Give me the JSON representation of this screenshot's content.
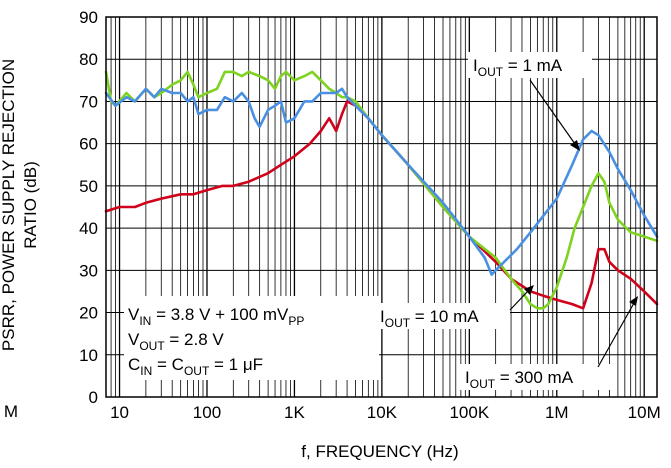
{
  "chart_data": {
    "type": "line",
    "title": "",
    "xlabel": "f, FREQUENCY (Hz)",
    "ylabel_line1": "PSRR, POWER SUPPLY REJECTION",
    "ylabel_line2": "RATIO (dB)",
    "x_scale": "log",
    "xlim": [
      7,
      14000000
    ],
    "ylim": [
      0,
      90
    ],
    "x_ticks": [
      10,
      100,
      1000,
      10000,
      100000,
      1000000,
      10000000
    ],
    "x_tick_labels": [
      "10",
      "100",
      "1K",
      "10K",
      "100K",
      "1M",
      "10M"
    ],
    "x_stray_label": "M",
    "y_ticks": [
      0,
      10,
      20,
      30,
      40,
      50,
      60,
      70,
      80,
      90
    ],
    "y_tick_labels": [
      "0",
      "10",
      "20",
      "30",
      "40",
      "50",
      "60",
      "70",
      "80",
      "90"
    ],
    "grid": true,
    "conditions": [
      {
        "pre": "V",
        "sub": "IN",
        "post": " = 3.8 V + 100 mV",
        "sub2": "PP"
      },
      {
        "pre": "V",
        "sub": "OUT",
        "post": " = 2.8 V"
      },
      {
        "pre": "C",
        "sub": "IN",
        "mid": " = C",
        "sub3": "OUT",
        "post": " = 1 μF"
      }
    ],
    "annotations": [
      {
        "pre": "I",
        "sub": "OUT",
        "post": " = 1 mA"
      },
      {
        "pre": "I",
        "sub": "OUT",
        "post": " = 10 mA"
      },
      {
        "pre": "I",
        "sub": "OUT",
        "post": " = 300 mA"
      }
    ],
    "series": [
      {
        "color": "#4a90e2",
        "x": [
          7,
          9,
          12,
          15,
          20,
          25,
          30,
          40,
          50,
          60,
          70,
          80,
          100,
          130,
          160,
          200,
          250,
          300,
          350,
          400,
          500,
          600,
          700,
          800,
          1000,
          1300,
          1600,
          2000,
          2500,
          3000,
          3500,
          4000,
          5000,
          7000,
          10000,
          20000,
          50000,
          100000,
          150000,
          180000,
          200000,
          250000,
          350000,
          500000,
          1000000,
          1500000,
          2000000,
          2500000,
          3000000,
          4000000,
          5000000,
          7000000,
          10000000,
          14000000
        ],
        "y": [
          72,
          69,
          71,
          70,
          73,
          71,
          73,
          72,
          72,
          70,
          71,
          67,
          68,
          68,
          71,
          70,
          72,
          70,
          66,
          64,
          68,
          69,
          70,
          65,
          66,
          70,
          70,
          72,
          72,
          72,
          73,
          71,
          69,
          66,
          62,
          55,
          46,
          38,
          33,
          29,
          30,
          32,
          35,
          39,
          47,
          55,
          61,
          63,
          62,
          58,
          54,
          49,
          43,
          38
        ]
      },
      {
        "color": "#7ed321",
        "x": [
          7,
          8,
          9,
          12,
          15,
          20,
          25,
          30,
          40,
          50,
          60,
          70,
          80,
          100,
          130,
          160,
          200,
          250,
          300,
          400,
          500,
          600,
          700,
          800,
          1000,
          1300,
          1600,
          2000,
          2500,
          3000,
          3500,
          4000,
          5000,
          7000,
          10000,
          20000,
          50000,
          100000,
          200000,
          300000,
          400000,
          500000,
          600000,
          700000,
          800000,
          1000000,
          1300000,
          1600000,
          2000000,
          2500000,
          3000000,
          3500000,
          4000000,
          5000000,
          7000000,
          10000000,
          14000000
        ],
        "y": [
          77,
          70,
          69,
          72,
          70,
          73,
          71,
          72,
          74,
          75,
          77,
          74,
          71,
          72,
          73,
          77,
          77,
          76,
          77,
          76,
          75,
          73,
          76,
          77,
          75,
          76,
          77,
          75,
          73,
          72,
          71,
          71,
          70,
          66,
          62,
          55,
          45,
          38,
          33,
          28,
          25,
          22,
          21,
          21,
          22,
          26,
          33,
          40,
          45,
          50,
          53,
          51,
          46,
          42,
          39,
          38,
          37
        ]
      },
      {
        "color": "#d0021b",
        "x": [
          7,
          10,
          15,
          20,
          30,
          50,
          70,
          100,
          150,
          200,
          300,
          500,
          700,
          1000,
          1500,
          2000,
          2500,
          3000,
          3500,
          4000,
          5000,
          7000,
          10000,
          20000,
          50000,
          100000,
          200000,
          300000,
          500000,
          700000,
          1000000,
          1500000,
          2000000,
          2500000,
          3000000,
          3500000,
          4000000,
          5000000,
          7000000,
          10000000,
          14000000
        ],
        "y": [
          44,
          45,
          45,
          46,
          47,
          48,
          48,
          49,
          50,
          50,
          51,
          53,
          55,
          57,
          60,
          63,
          66,
          63,
          67,
          70,
          69,
          66,
          62,
          55,
          45,
          38,
          32,
          28,
          25,
          24,
          23,
          22,
          21,
          27,
          35,
          35,
          32,
          30,
          28,
          25,
          22
        ]
      }
    ]
  }
}
